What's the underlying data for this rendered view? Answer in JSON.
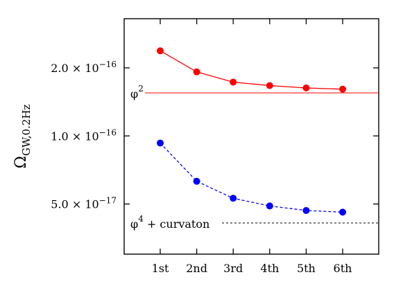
{
  "chart_data": {
    "type": "line",
    "ylabel": {
      "main": "Ω",
      "sub": "GW,0.2Hz"
    },
    "categories": [
      "1st",
      "2nd",
      "3rd",
      "4th",
      "5th",
      "6th"
    ],
    "yscale": "log",
    "ylim": [
      3e-17,
      3.3e-16
    ],
    "yticks": [
      {
        "value": 5e-17,
        "mantissa": "5.0",
        "times": "×",
        "base": "10",
        "exp": "−17"
      },
      {
        "value": 1e-16,
        "mantissa": "1.0",
        "times": "×",
        "base": "10",
        "exp": "−16"
      },
      {
        "value": 2e-16,
        "mantissa": "2.0",
        "times": "×",
        "base": "10",
        "exp": "−16"
      }
    ],
    "grid": false,
    "series": [
      {
        "name": "φ2",
        "label": {
          "base": "φ",
          "sup": "2",
          "rest": ""
        },
        "color": "#ff0000",
        "line_style": "solid",
        "values": [
          2.38e-16,
          1.92e-16,
          1.73e-16,
          1.67e-16,
          1.63e-16,
          1.61e-16
        ],
        "reference": 1.55e-16
      },
      {
        "name": "φ4 + curvaton",
        "label": {
          "base": "φ",
          "sup": "4",
          "rest": " + curvaton"
        },
        "color": "#0000ff",
        "line_style": "dashed",
        "values": [
          9.3e-17,
          6.3e-17,
          5.3e-17,
          4.9e-17,
          4.68e-17,
          4.6e-17
        ],
        "reference": 4.12e-17
      }
    ]
  }
}
